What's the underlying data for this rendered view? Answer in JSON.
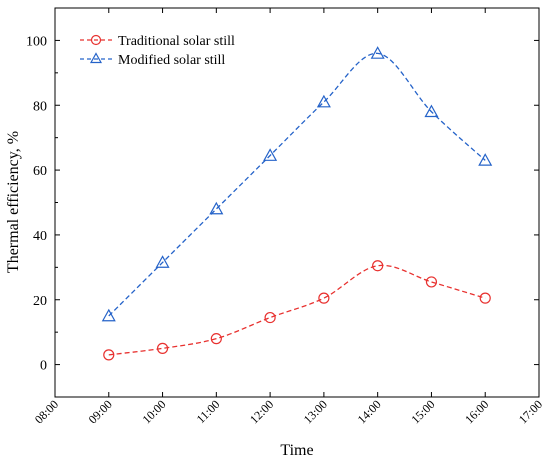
{
  "chart_data": {
    "type": "line",
    "title": "",
    "xlabel": "Time",
    "ylabel": "Thermal efficiency, %",
    "x_ticks": [
      "08:00",
      "09:00",
      "10:00",
      "11:00",
      "12:00",
      "13:00",
      "14:00",
      "15:00",
      "16:00",
      "17:00"
    ],
    "x_values": [
      9,
      10,
      11,
      12,
      13,
      14,
      15,
      16
    ],
    "xlim": [
      8,
      17
    ],
    "ylim": [
      -10,
      110
    ],
    "y_ticks": [
      0,
      20,
      40,
      60,
      80,
      100
    ],
    "grid": false,
    "legend_position": "top-left",
    "series": [
      {
        "name": "Traditional solar still",
        "marker": "circle",
        "line_style": "dashed",
        "color": "#e8312f",
        "values": [
          3,
          5,
          8,
          14.5,
          20.5,
          30.5,
          25.5,
          20.5
        ]
      },
      {
        "name": "Modified solar still",
        "marker": "triangle",
        "line_style": "dashed",
        "color": "#2563c9",
        "values": [
          15,
          31.5,
          48,
          64.5,
          81,
          96,
          78,
          63
        ]
      }
    ]
  }
}
